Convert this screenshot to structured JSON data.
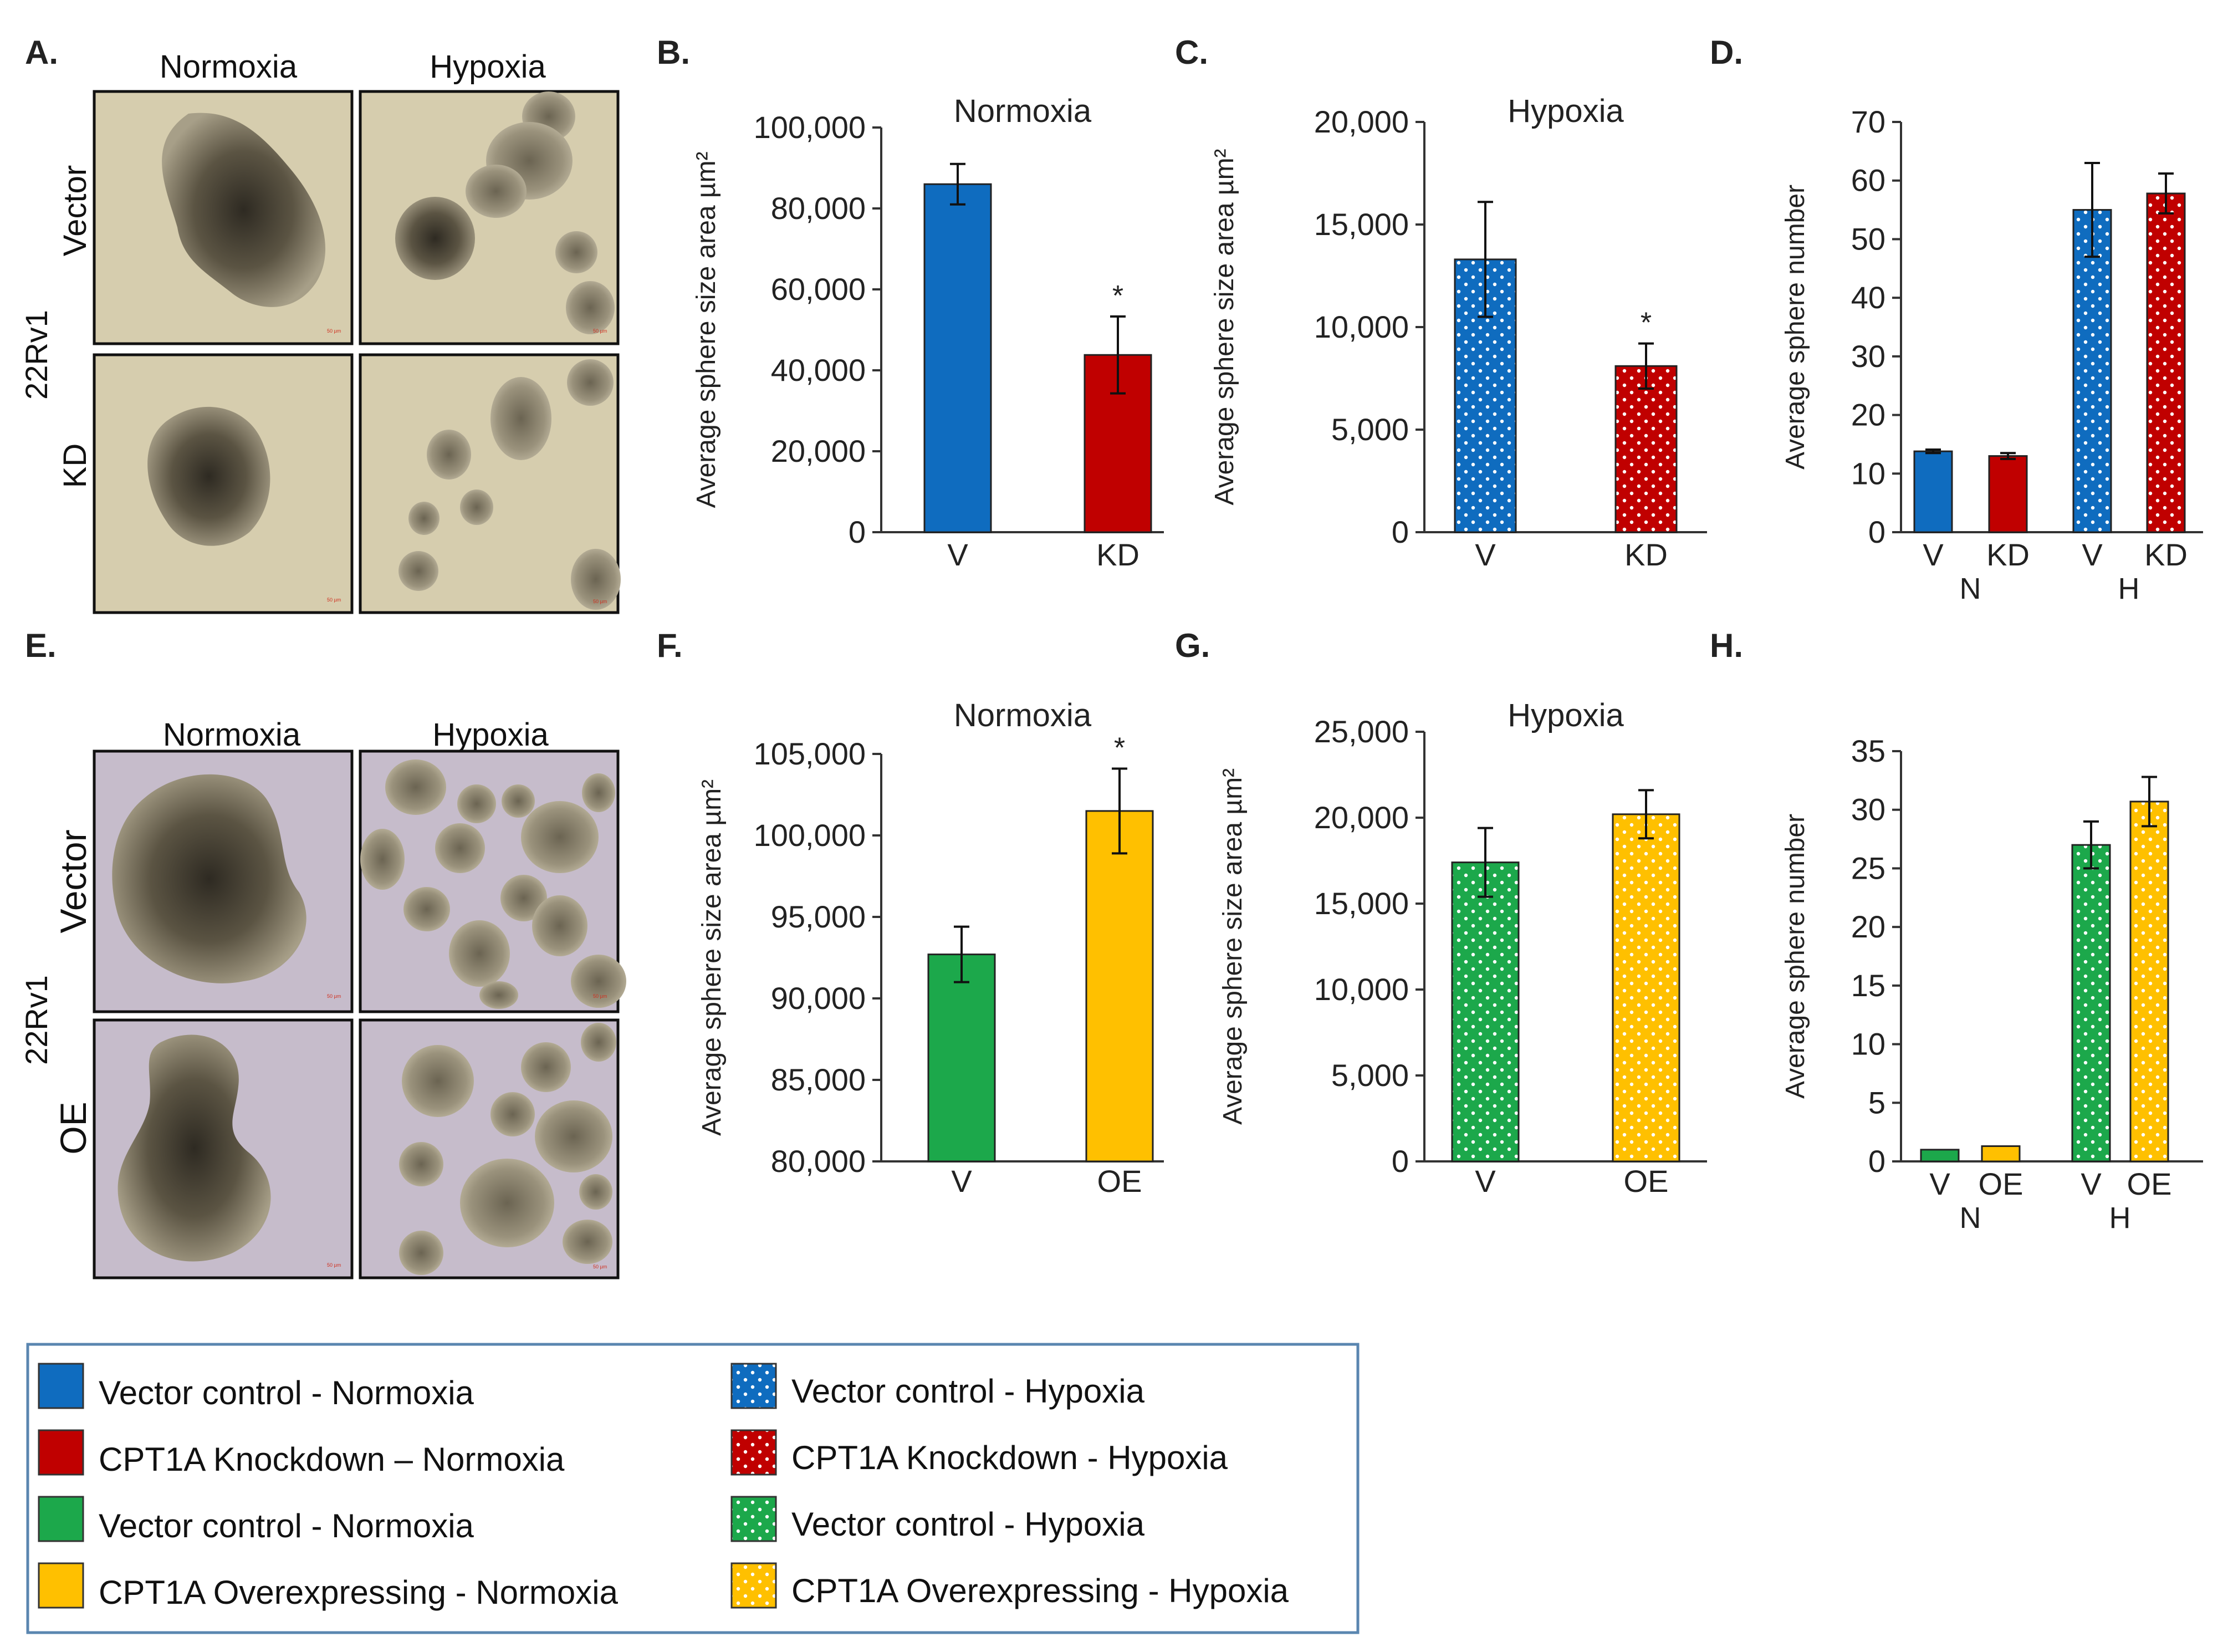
{
  "figure": {
    "panel_letters": [
      "A.",
      "B.",
      "C.",
      "D.",
      "E.",
      "F.",
      "G.",
      "H."
    ],
    "micrographs": [
      {
        "panel": "A.",
        "column_labels": [
          "Normoxia",
          "Hypoxia"
        ],
        "row_labels": [
          "Vector",
          "KD"
        ],
        "side_label": "22Rv1",
        "scale_bar_text": "50 µm",
        "background": "#d6cdae"
      },
      {
        "panel": "E.",
        "column_labels": [
          "Normoxia",
          "Hypoxia"
        ],
        "row_labels": [
          "Vector",
          "OE"
        ],
        "side_label": "22Rv1",
        "scale_bar_text": "50 µm",
        "background": "#c6bccb"
      }
    ],
    "legend": {
      "items": [
        {
          "label": "Vector control - Normoxia",
          "color": "#0f6cbf",
          "pattern": "solid"
        },
        {
          "label": "Vector control - Hypoxia",
          "color": "#0f6cbf",
          "pattern": "dotted"
        },
        {
          "label": "CPT1A Knockdown – Normoxia",
          "color": "#c00000",
          "pattern": "solid"
        },
        {
          "label": "CPT1A Knockdown - Hypoxia",
          "color": "#c00000",
          "pattern": "dotted"
        },
        {
          "label": "Vector control - Normoxia",
          "color": "#1ca84b",
          "pattern": "solid"
        },
        {
          "label": "Vector control - Hypoxia",
          "color": "#1ca84b",
          "pattern": "dotted"
        },
        {
          "label": "CPT1A Overexpressing  - Normoxia",
          "color": "#ffc000",
          "pattern": "solid"
        },
        {
          "label": "CPT1A Overexpressing  - Hypoxia",
          "color": "#ffc000",
          "pattern": "dotted"
        }
      ]
    }
  },
  "chart_data": [
    {
      "panel": "B.",
      "type": "bar",
      "title": "Normoxia",
      "ylabel": "Average sphere size area µm²",
      "categories": [
        "V",
        "KD"
      ],
      "values": [
        86000,
        43800
      ],
      "errors": [
        5000,
        9500
      ],
      "colors": [
        "#0f6cbf",
        "#c00000"
      ],
      "patterns": [
        "solid",
        "solid"
      ],
      "significance": [
        "",
        "*"
      ],
      "ylim": [
        0,
        100000
      ],
      "yticks": [
        0,
        20000,
        40000,
        60000,
        80000,
        100000
      ],
      "ytick_labels": [
        "0",
        "20,000",
        "40,000",
        "60,000",
        "80,000",
        "100,000"
      ]
    },
    {
      "panel": "C.",
      "type": "bar",
      "title": "Hypoxia",
      "ylabel": "Average sphere size area µm²",
      "categories": [
        "V",
        "KD"
      ],
      "values": [
        13300,
        8100
      ],
      "errors": [
        2800,
        1100
      ],
      "colors": [
        "#0f6cbf",
        "#c00000"
      ],
      "patterns": [
        "dotted",
        "dotted"
      ],
      "significance": [
        "",
        "*"
      ],
      "ylim": [
        0,
        20000
      ],
      "yticks": [
        0,
        5000,
        10000,
        15000,
        20000
      ],
      "ytick_labels": [
        "0",
        "5,000",
        "10,000",
        "15,000",
        "20,000"
      ]
    },
    {
      "panel": "D.",
      "type": "bar",
      "title": "",
      "ylabel": "Average sphere number",
      "categories": [
        "V",
        "KD",
        "V",
        "KD"
      ],
      "groups": [
        "N",
        "H"
      ],
      "values": [
        13.8,
        13.0,
        55.0,
        57.8
      ],
      "errors": [
        0.3,
        0.5,
        8.0,
        3.4
      ],
      "colors": [
        "#0f6cbf",
        "#c00000",
        "#0f6cbf",
        "#c00000"
      ],
      "patterns": [
        "solid",
        "solid",
        "dotted",
        "dotted"
      ],
      "significance": [
        "",
        "",
        "",
        ""
      ],
      "ylim": [
        0,
        70
      ],
      "yticks": [
        0,
        10,
        20,
        30,
        40,
        50,
        60,
        70
      ],
      "ytick_labels": [
        "0",
        "10",
        "20",
        "30",
        "40",
        "50",
        "60",
        "70"
      ]
    },
    {
      "panel": "F.",
      "type": "bar",
      "title": "Normoxia",
      "ylabel": "Average sphere size area µm²",
      "categories": [
        "V",
        "OE"
      ],
      "values": [
        92700,
        101500
      ],
      "errors": [
        1700,
        2600
      ],
      "colors": [
        "#1ca84b",
        "#ffc000"
      ],
      "patterns": [
        "solid",
        "solid"
      ],
      "significance": [
        "",
        "*"
      ],
      "ylim": [
        80000,
        105000
      ],
      "yticks": [
        80000,
        85000,
        90000,
        95000,
        100000,
        105000
      ],
      "ytick_labels": [
        "80,000",
        "85,000",
        "90,000",
        "95,000",
        "100,000",
        "105,000"
      ]
    },
    {
      "panel": "G.",
      "type": "bar",
      "title": "Hypoxia",
      "ylabel": "Average sphere size area µm²",
      "categories": [
        "V",
        "OE"
      ],
      "values": [
        17400,
        20200
      ],
      "errors": [
        2000,
        1400
      ],
      "colors": [
        "#1ca84b",
        "#ffc000"
      ],
      "patterns": [
        "dotted",
        "dotted"
      ],
      "significance": [
        "",
        ""
      ],
      "ylim": [
        0,
        25000
      ],
      "yticks": [
        0,
        5000,
        10000,
        15000,
        20000,
        25000
      ],
      "ytick_labels": [
        "0",
        "5,000",
        "10,000",
        "15,000",
        "20,000",
        "25,000"
      ]
    },
    {
      "panel": "H.",
      "type": "bar",
      "title": "",
      "ylabel": "Average sphere number",
      "categories": [
        "V",
        "OE",
        "V",
        "OE"
      ],
      "groups": [
        "N",
        "H"
      ],
      "values": [
        1.0,
        1.3,
        27.0,
        30.7
      ],
      "errors": [
        0,
        0,
        2.0,
        2.1
      ],
      "colors": [
        "#1ca84b",
        "#ffc000",
        "#1ca84b",
        "#ffc000"
      ],
      "patterns": [
        "solid",
        "solid",
        "dotted",
        "dotted"
      ],
      "significance": [
        "",
        "",
        "",
        ""
      ],
      "ylim": [
        0,
        35
      ],
      "yticks": [
        0,
        5,
        10,
        15,
        20,
        25,
        30,
        35
      ],
      "ytick_labels": [
        "0",
        "5",
        "10",
        "15",
        "20",
        "25",
        "30",
        "35"
      ]
    }
  ]
}
